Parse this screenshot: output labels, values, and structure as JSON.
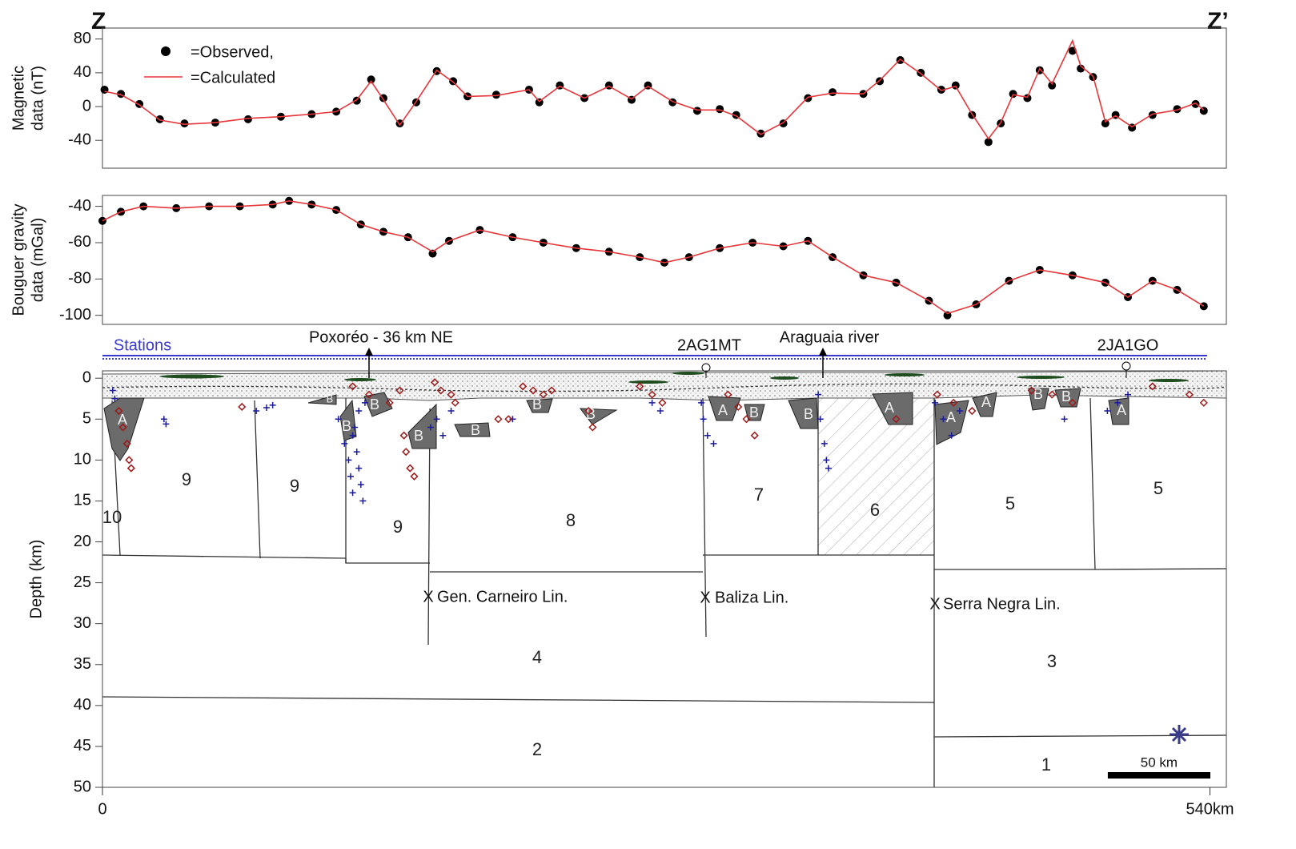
{
  "figure": {
    "left_label": "Z",
    "right_label": "Z’"
  },
  "chart_data": [
    {
      "type": "line",
      "ylabel": [
        "Magnetic",
        "data (nT)"
      ],
      "xlim": [
        0,
        548
      ],
      "ylim": [
        -73,
        93
      ],
      "yticks": [
        -40,
        0,
        40,
        80
      ],
      "x": [
        1,
        9,
        18,
        28,
        40,
        55,
        71,
        87,
        102,
        114,
        124,
        131,
        137,
        145,
        153,
        163,
        171,
        178,
        192,
        208,
        213,
        223,
        235,
        247,
        258,
        266,
        278,
        290,
        301,
        309,
        321,
        332,
        344,
        356,
        371,
        379,
        389,
        399,
        409,
        416,
        424,
        432,
        438,
        444,
        451,
        457,
        463,
        473,
        477,
        483,
        489,
        494,
        502,
        512,
        524,
        533,
        537
      ],
      "series": [
        {
          "name": "=Observed,",
          "color": "#000000",
          "marker": "dot",
          "values": [
            20,
            15,
            3,
            -15,
            -20,
            -19,
            -15,
            -12,
            -9,
            -6,
            7,
            32,
            10,
            -20,
            5,
            42,
            30,
            12,
            14,
            20,
            5,
            25,
            10,
            25,
            8,
            25,
            5,
            -5,
            -3,
            -10,
            -32,
            -20,
            10,
            17,
            15,
            30,
            55,
            40,
            20,
            25,
            -10,
            -42,
            -20,
            15,
            10,
            43,
            25,
            66,
            45,
            35,
            -20,
            -10,
            -25,
            -10,
            -3,
            3,
            -5
          ]
        },
        {
          "name": "=Calculated",
          "color": "#e8363a",
          "marker": "line",
          "values": [
            18,
            14,
            2,
            -16,
            -21,
            -19,
            -14,
            -12,
            -9,
            -6,
            8,
            30,
            8,
            -22,
            6,
            43,
            29,
            12,
            13,
            20,
            6,
            24,
            10,
            24,
            9,
            24,
            6,
            -4,
            -4,
            -11,
            -33,
            -19,
            11,
            16,
            15,
            31,
            56,
            39,
            19,
            24,
            -9,
            -38,
            -19,
            14,
            11,
            45,
            27,
            78,
            48,
            36,
            -18,
            -11,
            -24,
            -9,
            -4,
            4,
            -4
          ]
        }
      ]
    },
    {
      "type": "line",
      "ylabel": [
        "Bouguer gravity",
        "data (mGal)"
      ],
      "xlim": [
        0,
        548
      ],
      "ylim": [
        -105,
        -34
      ],
      "yticks": [
        -100,
        -80,
        -60,
        -40
      ],
      "x": [
        0,
        9,
        20,
        36,
        52,
        67,
        83,
        91,
        102,
        114,
        126,
        137,
        149,
        161,
        169,
        184,
        200,
        215,
        231,
        247,
        262,
        274,
        286,
        301,
        317,
        332,
        344,
        356,
        371,
        387,
        403,
        412,
        426,
        442,
        457,
        473,
        489,
        500,
        512,
        524,
        537
      ],
      "series": [
        {
          "color": "#000000",
          "marker": "dot",
          "values": [
            -48,
            -43,
            -40,
            -41,
            -40,
            -40,
            -39,
            -37,
            -39,
            -42,
            -50,
            -54,
            -57,
            -66,
            -59,
            -53,
            -57,
            -60,
            -63,
            -65,
            -68,
            -71,
            -68,
            -63,
            -60,
            -62,
            -59,
            -68,
            -78,
            -82,
            -92,
            -100,
            -94,
            -81,
            -75,
            -78,
            -82,
            -90,
            -81,
            -86,
            -95
          ]
        },
        {
          "color": "#e8363a",
          "marker": "line",
          "values": [
            -48,
            -43,
            -40,
            -41,
            -40,
            -40,
            -39,
            -37,
            -39,
            -42,
            -50,
            -54,
            -57,
            -65,
            -59,
            -53,
            -57,
            -60,
            -63,
            -65,
            -68,
            -71,
            -68,
            -63,
            -60,
            -62,
            -59,
            -68,
            -78,
            -82,
            -92,
            -99,
            -94,
            -81,
            -75,
            -78,
            -82,
            -90,
            -81,
            -86,
            -95
          ]
        }
      ]
    },
    {
      "type": "section",
      "ylabel": "Depth (km)",
      "xlim": [
        0,
        548
      ],
      "ylim": [
        50,
        -0.9
      ],
      "yticks": [
        0,
        5,
        10,
        15,
        20,
        25,
        30,
        35,
        40,
        45,
        50
      ],
      "xticks": [
        0,
        {
          "value": 540,
          "label": "540km"
        }
      ],
      "stations_label": "Stations",
      "markers": [
        "Poxoréo - 36 km NE",
        "2AG1MT",
        "Araguaia river",
        "2JA1GO"
      ],
      "blocks": [
        "10",
        "9",
        "9",
        "9",
        "8",
        "7",
        "6",
        "5",
        "5",
        "4",
        "3",
        "2",
        "1"
      ],
      "bodies": [
        "A",
        "B",
        "B",
        "B",
        "B",
        "B",
        "B",
        "B",
        "A",
        "B",
        "B",
        "A",
        "A",
        "A",
        "B",
        "B",
        "A"
      ],
      "lineaments": [
        "Gen. Carneiro Lin.",
        "Baliza Lin.",
        "Serra Negra Lin."
      ],
      "scale_bar": {
        "value": 50,
        "label": "50 km"
      },
      "series": [
        {
          "marker": "cross",
          "color": "#1a1a9c",
          "x": [
            5,
            6,
            30,
            31,
            75,
            80,
            83,
            115,
            118,
            120,
            121,
            122,
            123,
            124,
            125,
            126,
            127,
            128,
            122,
            125,
            160,
            163,
            166,
            170,
            200,
            268,
            272,
            292,
            293,
            295,
            298,
            349,
            350,
            352,
            353,
            354,
            406,
            410,
            414,
            418,
            469,
            490,
            495,
            500
          ],
          "values": [
            1.5,
            2.5,
            5,
            5.6,
            4,
            3.6,
            3.3,
            5,
            8,
            10,
            12,
            14,
            6,
            9,
            11,
            13,
            15,
            3,
            7,
            4,
            6,
            5,
            7,
            4,
            5,
            3,
            4,
            3,
            5,
            7,
            8,
            2,
            5,
            8,
            10,
            11,
            3,
            5,
            7,
            4,
            5,
            4,
            3,
            2
          ]
        },
        {
          "marker": "diamond",
          "color": "#a01818",
          "x": [
            8,
            10,
            12,
            13,
            14,
            68,
            122,
            130,
            140,
            145,
            147,
            148,
            150,
            152,
            162,
            165,
            170,
            172,
            193,
            198,
            205,
            210,
            215,
            219,
            237,
            239,
            262,
            268,
            273,
            305,
            310,
            314,
            318,
            387,
            407,
            415,
            424,
            453,
            463,
            473,
            512,
            530,
            537
          ],
          "values": [
            4,
            6,
            8,
            10,
            11,
            3.5,
            1,
            2,
            3,
            1.5,
            7,
            9,
            11,
            12,
            0.5,
            1.5,
            2,
            3,
            5,
            5,
            1,
            1.5,
            2,
            1.5,
            4,
            6,
            1,
            2,
            3,
            2,
            3.5,
            5,
            7,
            5,
            2,
            3,
            4,
            1.5,
            2,
            3,
            1,
            2,
            3
          ]
        }
      ]
    }
  ]
}
